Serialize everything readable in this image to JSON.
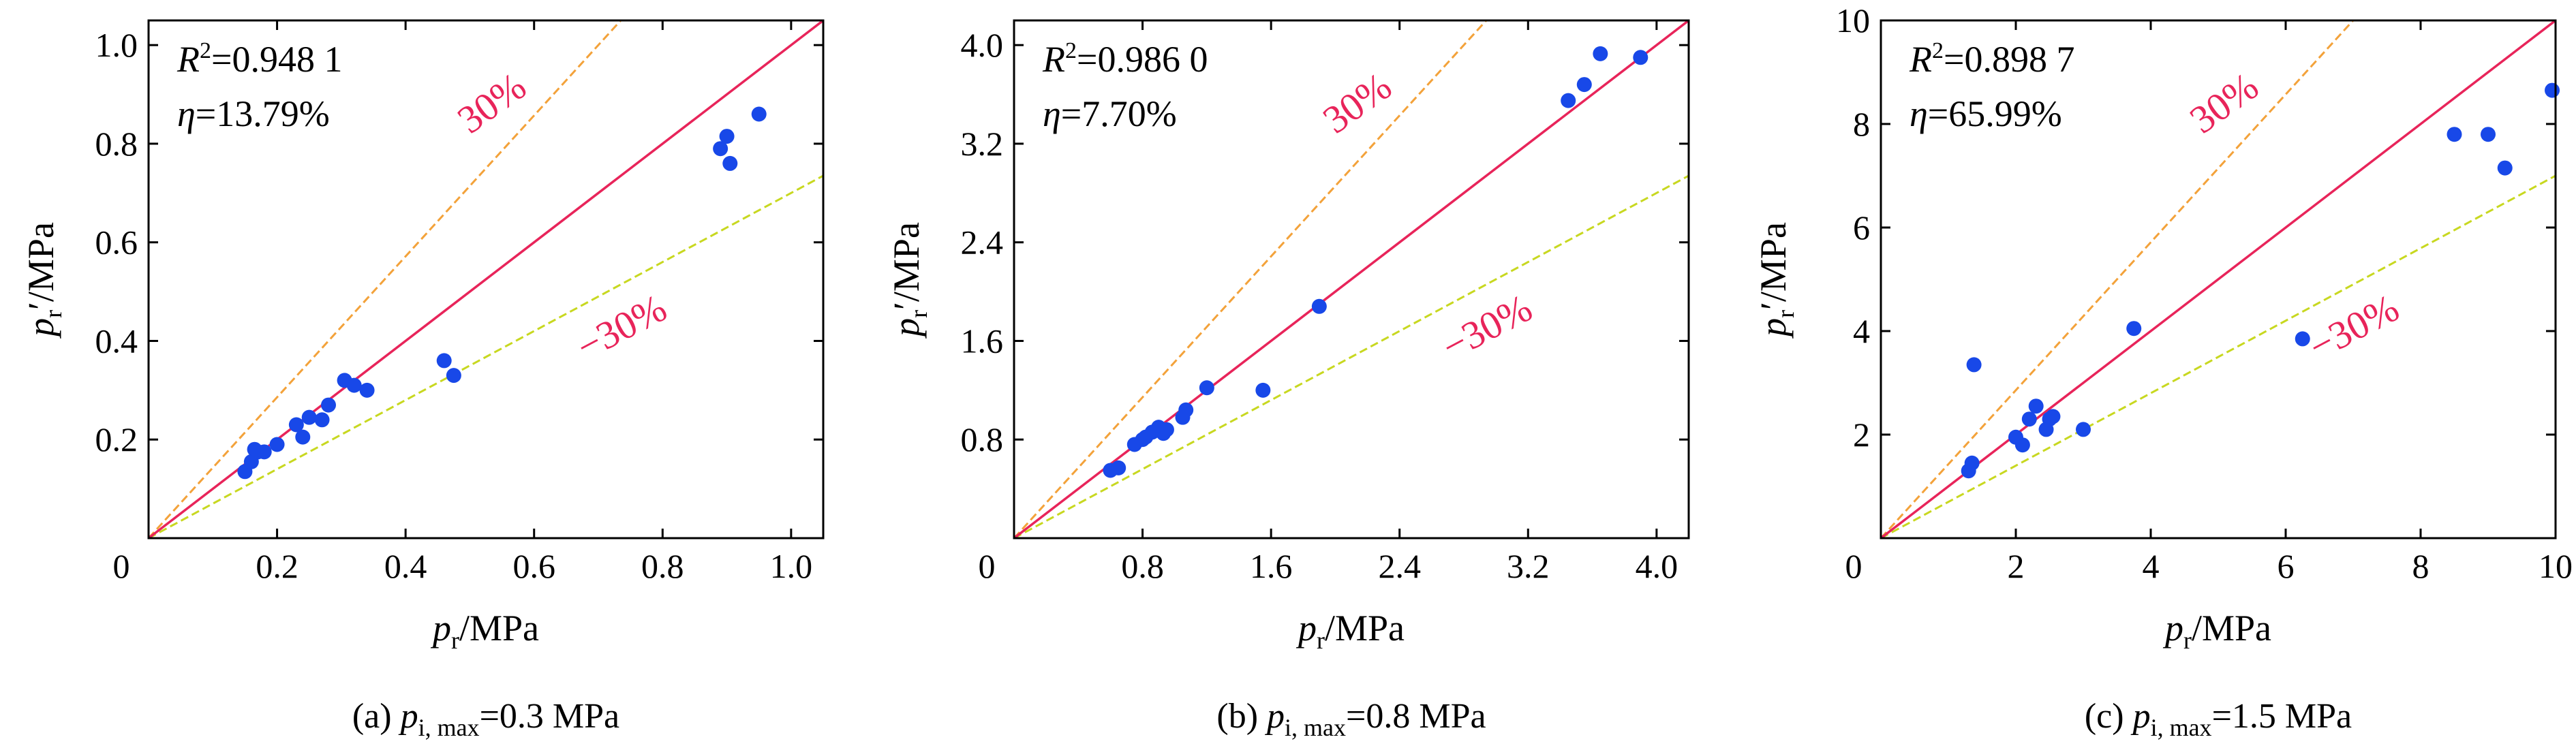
{
  "figure": {
    "x_unit_label": "/MPa",
    "y_unit_label": "/MPa",
    "var_main": "p",
    "var_sub": "r",
    "var_prime": "′",
    "r2_symbol": "R",
    "r2_sup": "2",
    "eta_symbol": "η"
  },
  "chart_data": [
    {
      "type": "scatter",
      "panel_label": {
        "prefix": "(a) ",
        "var": "p",
        "sub": "i, max",
        "value": "=0.3 MPa"
      },
      "annotation": {
        "r2": "=0.948 1",
        "eta": "=13.79%"
      },
      "band_labels": {
        "upper": "30%",
        "lower": "−30%"
      },
      "xlim": [
        0,
        1.05
      ],
      "ylim": [
        0,
        1.05
      ],
      "xticks": [
        0.2,
        0.4,
        0.6,
        0.8,
        1.0
      ],
      "xtick_labels": [
        "0.2",
        "0.4",
        "0.6",
        "0.8",
        "1.0"
      ],
      "yticks": [
        0.2,
        0.4,
        0.6,
        0.8,
        1.0
      ],
      "ytick_labels": [
        "0.2",
        "0.4",
        "0.6",
        "0.8",
        "1.0"
      ],
      "origin_label": "0",
      "lines": {
        "equality_slope": 1.0,
        "upper_slope": 1.4286,
        "lower_slope": 0.7
      },
      "x": [
        0.15,
        0.16,
        0.165,
        0.17,
        0.18,
        0.2,
        0.23,
        0.24,
        0.25,
        0.27,
        0.28,
        0.305,
        0.32,
        0.34,
        0.46,
        0.475,
        0.89,
        0.9,
        0.905,
        0.95
      ],
      "y": [
        0.135,
        0.155,
        0.18,
        0.175,
        0.175,
        0.19,
        0.23,
        0.205,
        0.245,
        0.24,
        0.27,
        0.32,
        0.31,
        0.3,
        0.36,
        0.33,
        0.79,
        0.815,
        0.76,
        0.86
      ]
    },
    {
      "type": "scatter",
      "panel_label": {
        "prefix": "(b) ",
        "var": "p",
        "sub": "i, max",
        "value": "=0.8 MPa"
      },
      "annotation": {
        "r2": "=0.986 0",
        "eta": "=7.70%"
      },
      "band_labels": {
        "upper": "30%",
        "lower": "−30%"
      },
      "xlim": [
        0,
        4.2
      ],
      "ylim": [
        0,
        4.2
      ],
      "xticks": [
        0.8,
        1.6,
        2.4,
        3.2,
        4.0
      ],
      "xtick_labels": [
        "0.8",
        "1.6",
        "2.4",
        "3.2",
        "4.0"
      ],
      "yticks": [
        0.8,
        1.6,
        2.4,
        3.2,
        4.0
      ],
      "ytick_labels": [
        "0.8",
        "1.6",
        "2.4",
        "3.2",
        "4.0"
      ],
      "origin_label": "0",
      "lines": {
        "equality_slope": 1.0,
        "upper_slope": 1.4286,
        "lower_slope": 0.7
      },
      "x": [
        0.6,
        0.65,
        0.75,
        0.8,
        0.82,
        0.86,
        0.9,
        0.93,
        0.95,
        1.05,
        1.07,
        1.2,
        1.55,
        1.9,
        3.45,
        3.55,
        3.65,
        3.9
      ],
      "y": [
        0.55,
        0.57,
        0.76,
        0.8,
        0.82,
        0.86,
        0.9,
        0.85,
        0.88,
        0.98,
        1.04,
        1.22,
        1.2,
        1.88,
        3.55,
        3.68,
        3.93,
        3.9
      ]
    },
    {
      "type": "scatter",
      "panel_label": {
        "prefix": "(c) ",
        "var": "p",
        "sub": "i, max",
        "value": "=1.5 MPa"
      },
      "annotation": {
        "r2": "=0.898 7",
        "eta": "=65.99%"
      },
      "band_labels": {
        "upper": "30%",
        "lower": "−30%"
      },
      "xlim": [
        0,
        10
      ],
      "ylim": [
        0,
        10
      ],
      "xticks": [
        2,
        4,
        6,
        8,
        10
      ],
      "xtick_labels": [
        "2",
        "4",
        "6",
        "8",
        "10"
      ],
      "yticks": [
        2,
        4,
        6,
        8,
        10
      ],
      "ytick_labels": [
        "2",
        "4",
        "6",
        "8",
        "10"
      ],
      "origin_label": "0",
      "lines": {
        "equality_slope": 1.0,
        "upper_slope": 1.4286,
        "lower_slope": 0.7
      },
      "x": [
        1.3,
        1.35,
        1.38,
        2.0,
        2.1,
        2.2,
        2.3,
        2.45,
        2.5,
        2.55,
        3.0,
        3.75,
        6.25,
        8.5,
        9.0,
        9.25,
        9.95
      ],
      "y": [
        1.3,
        1.45,
        3.35,
        1.95,
        1.8,
        2.3,
        2.55,
        2.1,
        2.3,
        2.35,
        2.1,
        4.05,
        3.85,
        7.8,
        7.8,
        7.15,
        8.65
      ]
    }
  ]
}
